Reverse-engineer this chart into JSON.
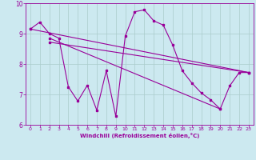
{
  "xlabel": "Windchill (Refroidissement éolien,°C)",
  "bg_color": "#cce9f0",
  "grid_color": "#aacccc",
  "line_color": "#990099",
  "xlim": [
    -0.5,
    23.5
  ],
  "ylim": [
    6,
    10
  ],
  "yticks": [
    6,
    7,
    8,
    9,
    10
  ],
  "xticks": [
    0,
    1,
    2,
    3,
    4,
    5,
    6,
    7,
    8,
    9,
    10,
    11,
    12,
    13,
    14,
    15,
    16,
    17,
    18,
    19,
    20,
    21,
    22,
    23
  ],
  "windchill_x": [
    0,
    1,
    2,
    3,
    4,
    5,
    6,
    7,
    8,
    9,
    10,
    11,
    12,
    13,
    14,
    15,
    16,
    17,
    18,
    19,
    20,
    21,
    22,
    23
  ],
  "windchill_y": [
    9.15,
    9.38,
    9.0,
    8.85,
    7.25,
    6.78,
    7.3,
    6.48,
    7.78,
    6.28,
    8.92,
    9.72,
    9.78,
    9.42,
    9.28,
    8.62,
    7.78,
    7.38,
    7.05,
    6.82,
    6.52,
    7.28,
    7.72,
    7.72
  ],
  "trend1_x": [
    0,
    23
  ],
  "trend1_y": [
    9.15,
    7.72
  ],
  "trend2_x": [
    2,
    20
  ],
  "trend2_y": [
    8.85,
    6.52
  ],
  "trend3_x": [
    2,
    23
  ],
  "trend3_y": [
    8.72,
    7.72
  ]
}
